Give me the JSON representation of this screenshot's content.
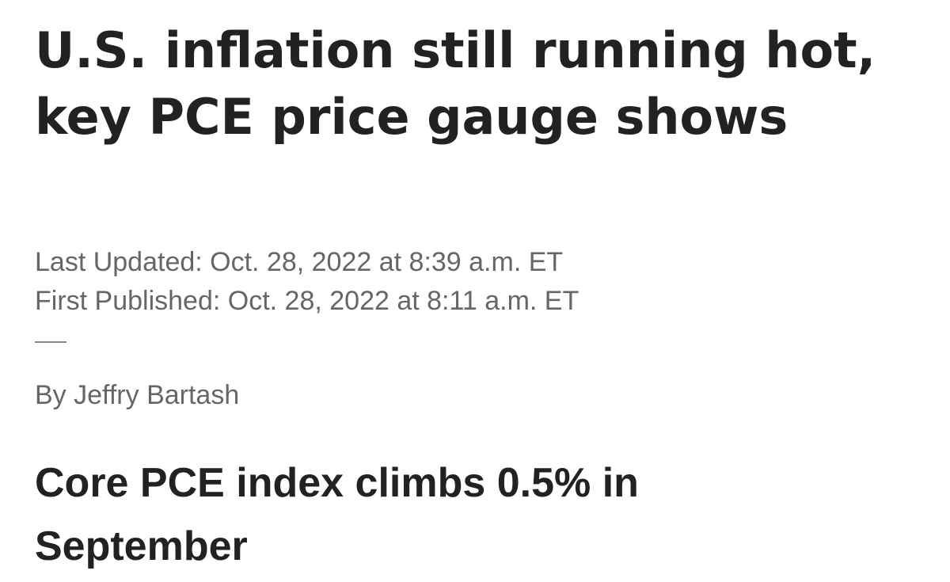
{
  "headline": "U.S. inflation still running hot, key PCE price gauge shows",
  "last_updated": "Last Updated: Oct. 28, 2022 at 8:39 a.m. ET",
  "first_published": "First Published: Oct. 28, 2022 at 8:11 a.m. ET",
  "byline": "By Jeffry Bartash",
  "subheadline": "Core PCE index climbs 0.5% in September"
}
